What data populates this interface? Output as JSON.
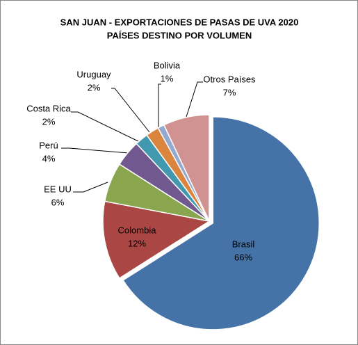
{
  "chart_data": {
    "type": "pie",
    "title": "SAN JUAN - EXPORTACIONES DE PASAS DE UVA 2020",
    "subtitle": "PAÍSES DESTINO POR VOLUMEN",
    "categories": [
      "Brasil",
      "Colombia",
      "EE UU",
      "Perú",
      "Costa Rica",
      "Uruguay",
      "Bolivia",
      "Otros Países"
    ],
    "values": [
      66,
      12,
      6,
      4,
      2,
      2,
      1,
      7
    ],
    "value_labels": [
      "66%",
      "12%",
      "6%",
      "4%",
      "2%",
      "2%",
      "1%",
      "7%"
    ],
    "colors": [
      "#4572a7",
      "#aa4643",
      "#89a54e",
      "#71588f",
      "#4198af",
      "#db843d",
      "#93a9cf",
      "#d19392"
    ]
  }
}
